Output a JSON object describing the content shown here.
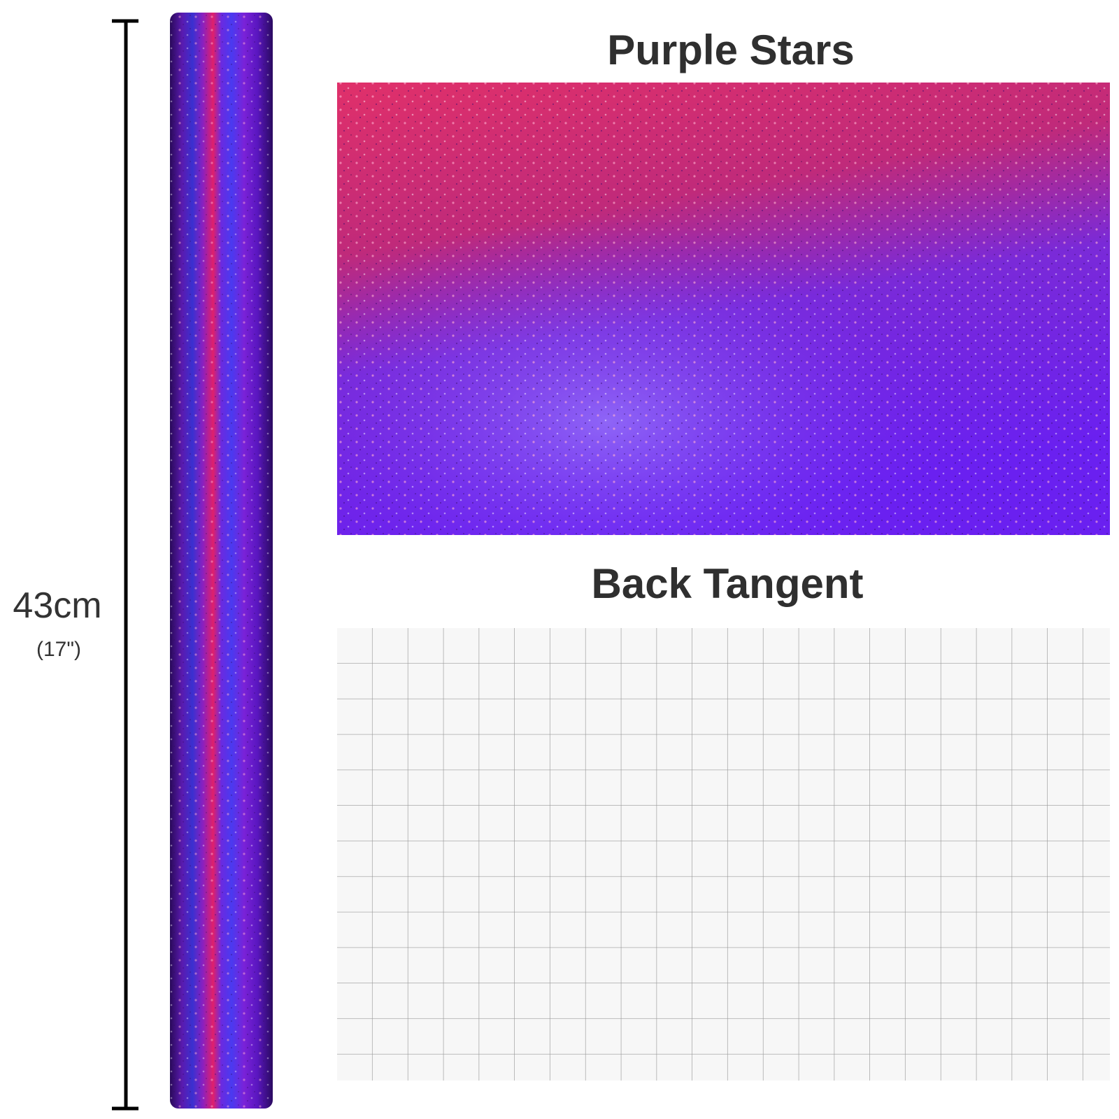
{
  "header": {
    "title": "Purple Stars"
  },
  "back": {
    "title": "Back Tangent"
  },
  "dimension": {
    "metric": "43cm",
    "imperial": "(17\")"
  }
}
